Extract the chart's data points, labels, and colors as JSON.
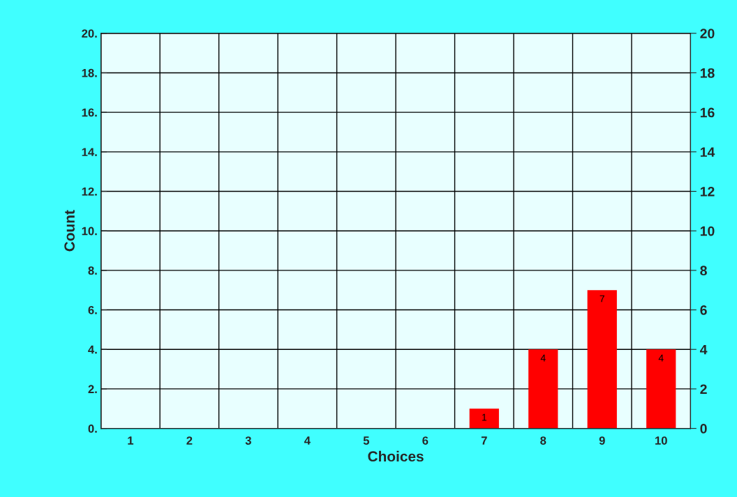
{
  "chart_data": {
    "type": "bar",
    "xlabel": "Choices",
    "ylabel": "Count",
    "categories": [
      "1",
      "2",
      "3",
      "4",
      "5",
      "6",
      "7",
      "8",
      "9",
      "10"
    ],
    "values": [
      0,
      0,
      0,
      0,
      0,
      0,
      1,
      4,
      7,
      4
    ],
    "value_labels": [
      null,
      null,
      null,
      null,
      null,
      null,
      "1",
      "4",
      "7",
      "4"
    ],
    "color": "#ff0000",
    "ylim": [
      0,
      20
    ],
    "yticks": [
      {
        "value": 0,
        "label": "0."
      },
      {
        "value": 2,
        "label": "2."
      },
      {
        "value": 4,
        "label": "4."
      },
      {
        "value": 6,
        "label": "6."
      },
      {
        "value": 8,
        "label": "8."
      },
      {
        "value": 10,
        "label": "10."
      },
      {
        "value": 12,
        "label": "12."
      },
      {
        "value": 14,
        "label": "14."
      },
      {
        "value": 16,
        "label": "16."
      },
      {
        "value": 18,
        "label": "18."
      },
      {
        "value": 20,
        "label": "20."
      }
    ],
    "y2lim": [
      0,
      20
    ],
    "y2ticks": [
      0,
      2,
      4,
      6,
      8,
      10,
      12,
      14,
      16,
      18,
      20
    ],
    "grid": true
  }
}
